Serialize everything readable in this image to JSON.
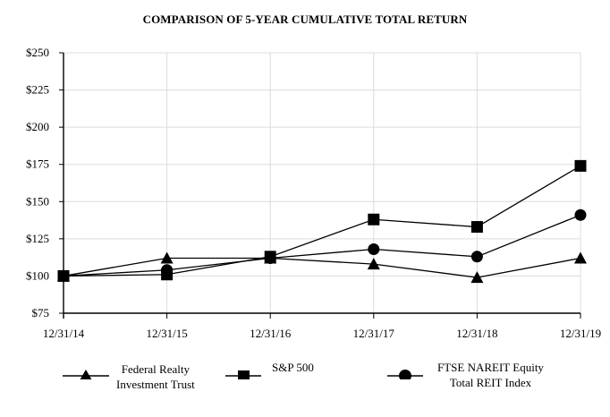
{
  "chart_data": {
    "type": "line",
    "title": "COMPARISON OF 5-YEAR CUMULATIVE TOTAL RETURN",
    "xlabel": "",
    "ylabel": "",
    "categories": [
      "12/31/14",
      "12/31/15",
      "12/31/16",
      "12/31/17",
      "12/31/18",
      "12/31/19"
    ],
    "y_ticks": [
      "$75",
      "$100",
      "$125",
      "$150",
      "$175",
      "$200",
      "$225",
      "$250"
    ],
    "ylim": [
      75,
      250
    ],
    "grid": true,
    "legend_position": "bottom",
    "series": [
      {
        "name": "Federal Realty Investment Trust",
        "marker": "triangle",
        "values": [
          100,
          112,
          112,
          108,
          99,
          112
        ]
      },
      {
        "name": "S&P 500",
        "marker": "square",
        "values": [
          100,
          101,
          113,
          138,
          133,
          174
        ]
      },
      {
        "name": "FTSE NAREIT Equity Total REIT Index",
        "marker": "circle",
        "values": [
          100,
          104,
          112,
          118,
          113,
          141
        ]
      }
    ]
  },
  "legend": {
    "items": [
      {
        "line1": "Federal Realty",
        "line2": "Investment Trust",
        "icon": "triangle-marker"
      },
      {
        "line1": "S&P 500",
        "line2": "",
        "icon": "square-marker"
      },
      {
        "line1": "FTSE NAREIT Equity",
        "line2": "Total REIT Index",
        "icon": "circle-marker"
      }
    ]
  }
}
